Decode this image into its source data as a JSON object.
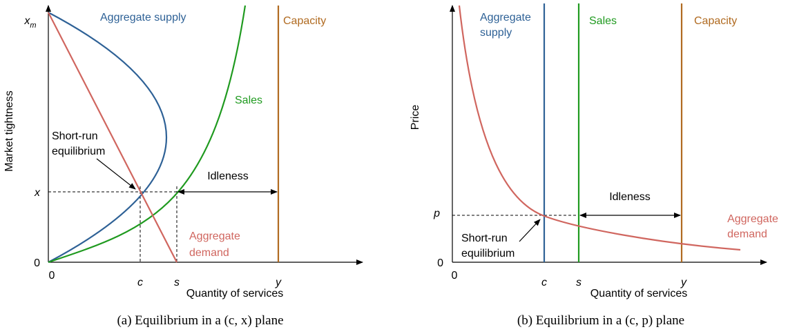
{
  "panels": [
    {
      "y_axis_label": "Market tightness",
      "x_axis_label": "Quantity of services",
      "x_ticks": [
        "0",
        "c",
        "s",
        "y"
      ],
      "y_ticks": [
        "0",
        "x",
        {
          "base": "x",
          "subscript": "m"
        }
      ],
      "curve_labels": {
        "supply": "Aggregate supply",
        "sales": "Sales",
        "capacity": "Capacity",
        "demand": [
          "Aggregate",
          "demand"
        ]
      },
      "equilibrium": [
        "Short-run",
        "equilibrium"
      ],
      "idleness": "Idleness",
      "caption": "(a) Equilibrium in a (c, x) plane"
    },
    {
      "y_axis_label": "Price",
      "x_axis_label": "Quantity of services",
      "x_ticks": [
        "0",
        "c",
        "s",
        "y"
      ],
      "y_ticks": [
        "0",
        "p"
      ],
      "curve_labels": {
        "supply": [
          "Aggregate",
          "supply"
        ],
        "sales": "Sales",
        "capacity": "Capacity",
        "demand": [
          "Aggregate",
          "demand"
        ]
      },
      "equilibrium": [
        "Short-run",
        "equilibrium"
      ],
      "idleness": "Idleness",
      "caption": "(b) Equilibrium in a (c, p) plane"
    }
  ]
}
